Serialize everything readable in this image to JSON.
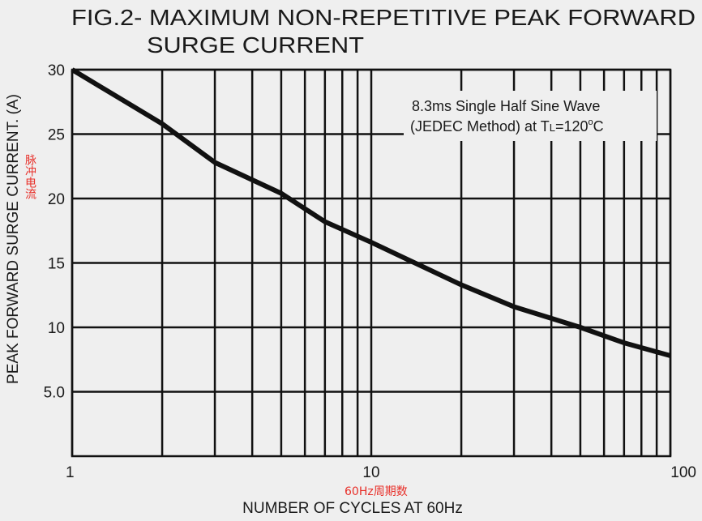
{
  "chart_data": {
    "type": "line",
    "title": [
      "FIG.2- MAXIMUM NON-REPETITIVE PEAK FORWARD",
      "SURGE CURRENT"
    ],
    "x_label": "NUMBER OF CYCLES AT 60Hz",
    "y_label": "PEAK FORWARD SURGE CURRENT. (A)",
    "annotation": {
      "line1": "8.3ms Single Half Sine Wave",
      "line2": [
        "(JEDEC Method) at T",
        "L",
        "=120",
        "o",
        "C"
      ]
    },
    "y_note": "脉冲电流",
    "x_note": "60Hz周期数",
    "x_scale": "log",
    "xlim": [
      1,
      100
    ],
    "xticks": [
      1,
      10,
      100
    ],
    "ylim": [
      0,
      30
    ],
    "yticks": [
      {
        "value": 5,
        "label": "5.0"
      },
      10,
      15,
      20,
      25,
      30
    ],
    "grid": true,
    "x": [
      1,
      2,
      3,
      5,
      7,
      10,
      20,
      30,
      50,
      70,
      100
    ],
    "series": [
      {
        "name": "8.3ms Single Half Sine Wave",
        "color": "#111111",
        "values": [
          30,
          25.8,
          22.8,
          20.4,
          18.2,
          16.6,
          13.3,
          11.6,
          10.0,
          8.8,
          7.8
        ]
      }
    ]
  }
}
